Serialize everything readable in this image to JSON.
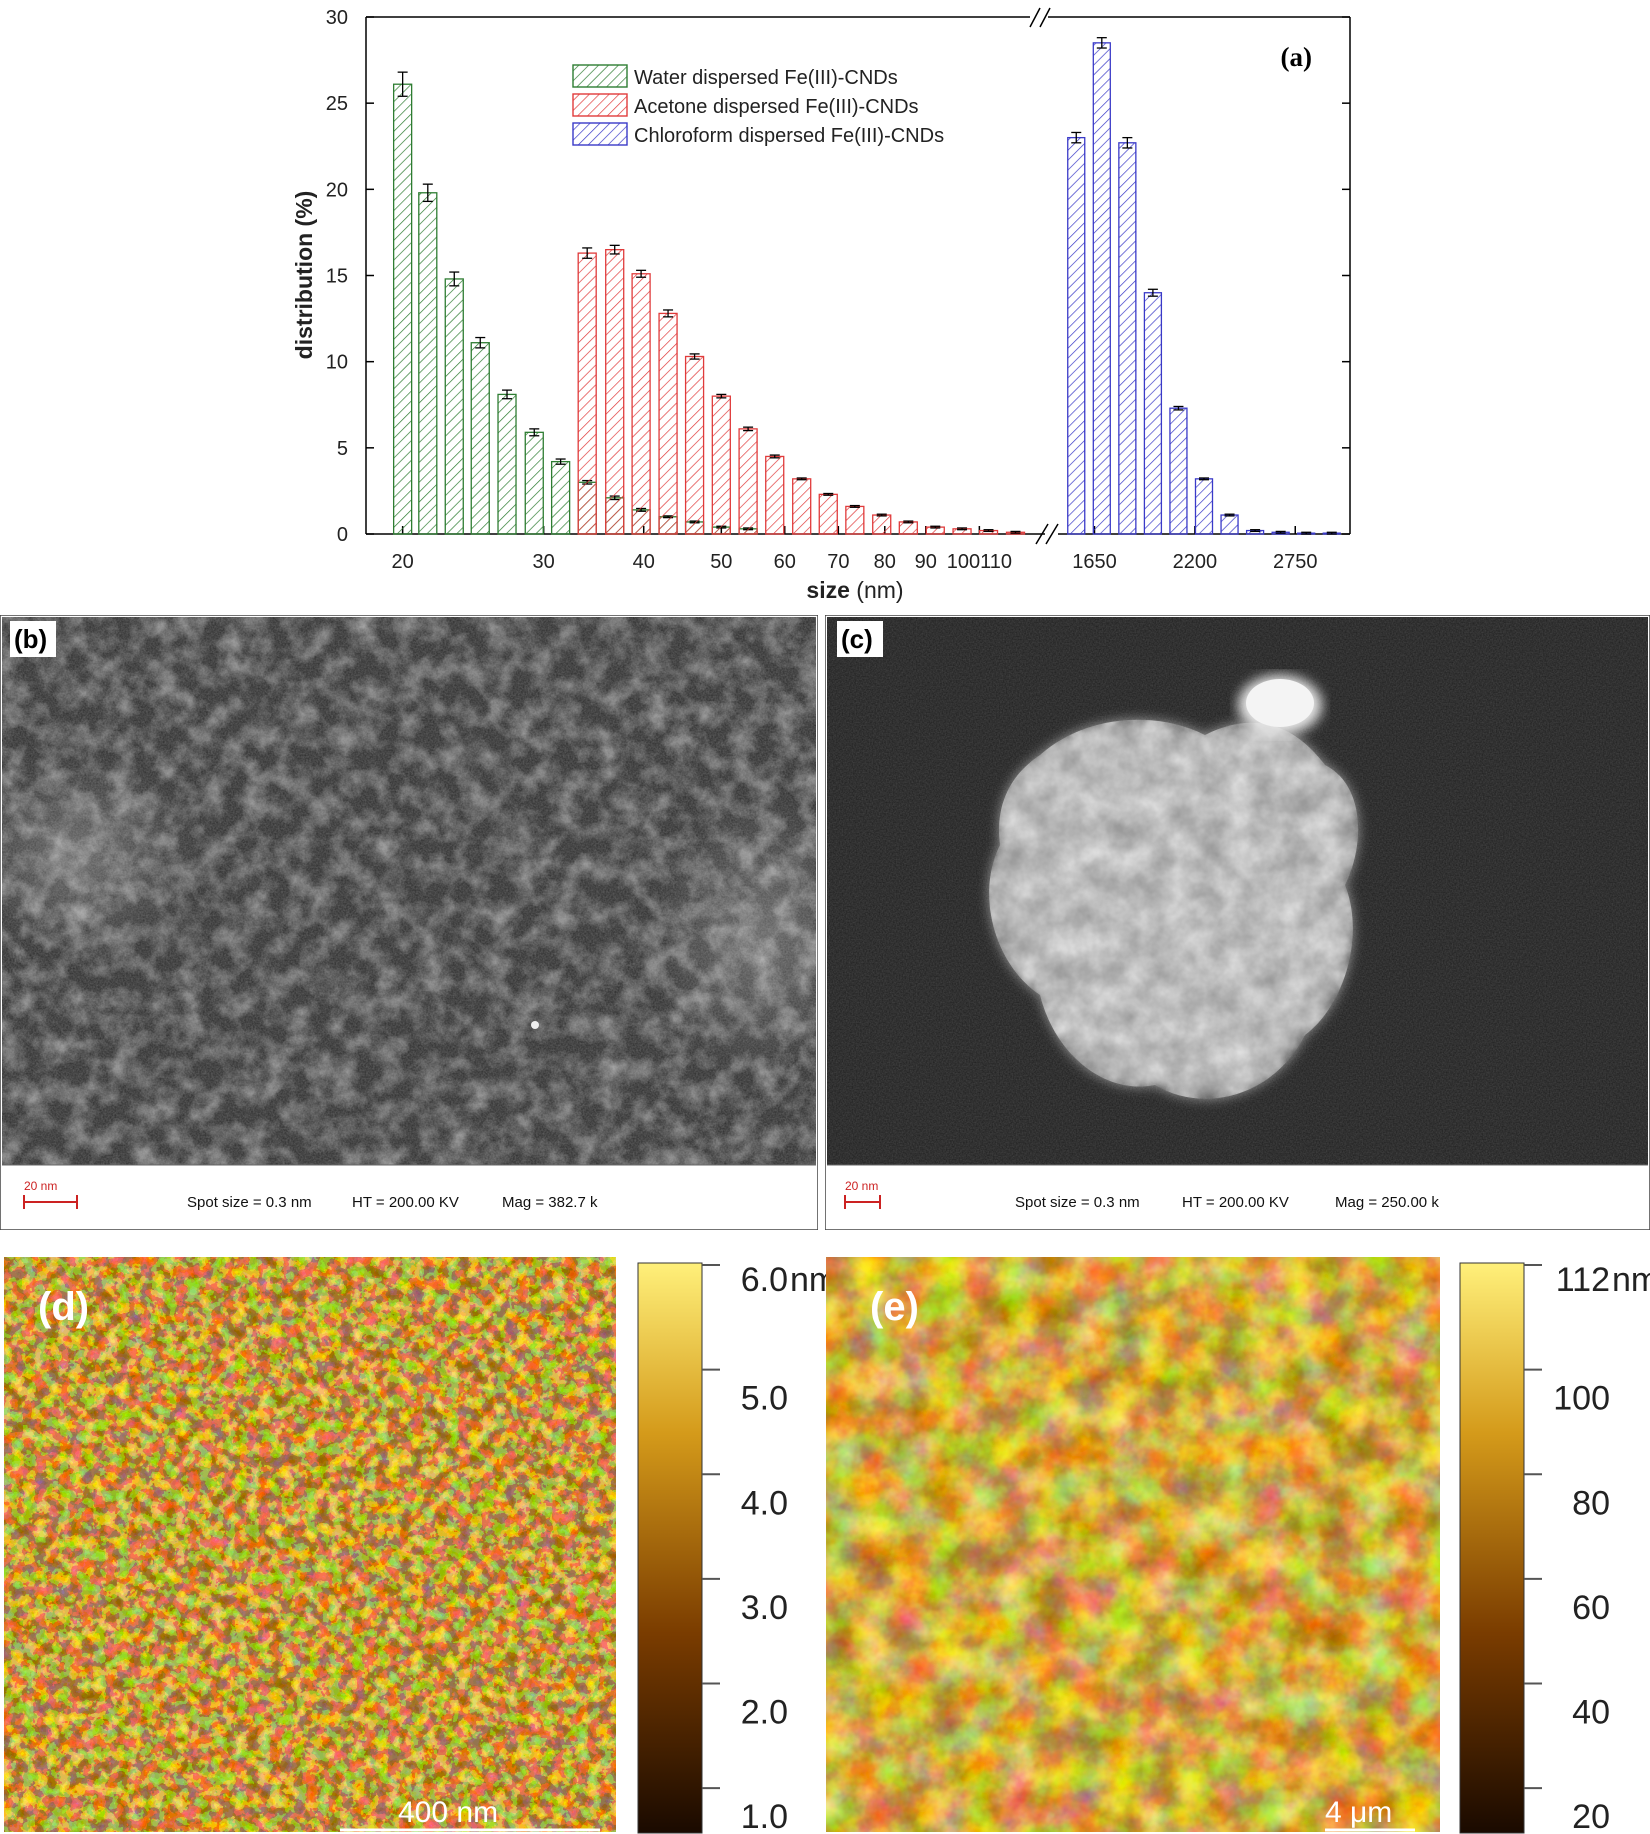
{
  "panel_a": {
    "label": "(a)",
    "ylabel": "distribution (%)",
    "xlabel_bold": "size",
    "xlabel_unit": " (nm)",
    "y_ticks": [
      "0",
      "5",
      "10",
      "15",
      "20",
      "25",
      "30"
    ],
    "x_ticks": [
      "20",
      "30",
      "40",
      "50",
      "60",
      "70",
      "80",
      "90",
      "100110",
      "1650",
      "2200",
      "2750"
    ],
    "legend": [
      {
        "name": "Water dispersed Fe(III)-CNDs",
        "color": "#2e7d32"
      },
      {
        "name": "Acetone dispersed Fe(III)-CNDs",
        "color": "#e03b3b"
      },
      {
        "name": "Chloroform dispersed Fe(III)-CNDs",
        "color": "#3a3ac8"
      }
    ]
  },
  "chart_data": {
    "type": "bar",
    "title": "",
    "xlabel": "size (nm)",
    "ylabel": "distribution (%)",
    "ylim": [
      0,
      30
    ],
    "x_axis": "broken axis: 18-125 nm on a log scale, then break, then 1450-3050 nm linear",
    "legend_placement": "top-center",
    "series": [
      {
        "name": "Water dispersed Fe(III)-CNDs",
        "color": "#2e7d32",
        "x": [
          20,
          21.5,
          23.2,
          25,
          27,
          29.2,
          31.5,
          34,
          36.8,
          39.7,
          42.9,
          46.3,
          50,
          54
        ],
        "values": [
          26.1,
          19.8,
          14.8,
          11.1,
          8.1,
          5.9,
          4.2,
          3.0,
          2.1,
          1.4,
          1.0,
          0.7,
          0.4,
          0.3
        ],
        "errors": [
          0.7,
          0.5,
          0.4,
          0.3,
          0.25,
          0.2,
          0.15,
          0.1,
          0.1,
          0.08,
          0.05,
          0.05,
          0.05,
          0.05
        ]
      },
      {
        "name": "Acetone dispersed Fe(III)-CNDs",
        "color": "#e03b3b",
        "x": [
          34,
          36.8,
          39.7,
          42.9,
          46.3,
          50,
          54,
          58.3,
          63,
          68,
          73.4,
          79.3,
          85.6,
          92.5,
          99.9,
          107.8,
          116.5
        ],
        "values": [
          16.3,
          16.5,
          15.1,
          12.8,
          10.3,
          8.0,
          6.1,
          4.5,
          3.2,
          2.3,
          1.6,
          1.1,
          0.7,
          0.4,
          0.3,
          0.2,
          0.1
        ],
        "errors": [
          0.3,
          0.25,
          0.2,
          0.2,
          0.15,
          0.1,
          0.1,
          0.08,
          0.05,
          0.05,
          0.05,
          0.05,
          0.05,
          0.05,
          0.05,
          0.05,
          0.05
        ]
      },
      {
        "name": "Chloroform dispersed Fe(III)-CNDs",
        "color": "#3a3ac8",
        "x": [
          1550,
          1690,
          1830,
          1970,
          2110,
          2250,
          2390,
          2530,
          2670,
          2810,
          2950
        ],
        "values": [
          23.0,
          28.5,
          22.7,
          14.0,
          7.3,
          3.2,
          1.1,
          0.2,
          0.1,
          0.05,
          0.05
        ],
        "errors": [
          0.3,
          0.3,
          0.3,
          0.2,
          0.1,
          0.05,
          0.05,
          0.05,
          0.05,
          0.05,
          0.05
        ]
      }
    ]
  },
  "panel_b": {
    "label": "(b)",
    "scale_label": "20 nm",
    "info": [
      "Spot size = 0.3 nm",
      "HT = 200.00 KV",
      "Mag = 382.7 k"
    ]
  },
  "panel_c": {
    "label": "(c)",
    "scale_label": "20 nm",
    "info": [
      "Spot size = 0.3 nm",
      "HT = 200.00 KV",
      "Mag = 250.00 k"
    ]
  },
  "panel_d": {
    "label": "(d)",
    "scale_label": "400 nm",
    "colorbar_ticks": [
      "6.0",
      "5.0",
      "4.0",
      "3.0",
      "2.0",
      "1.0"
    ],
    "colorbar_unit": "nm"
  },
  "panel_e": {
    "label": "(e)",
    "scale_label": "4 μm",
    "colorbar_ticks": [
      "112",
      "100",
      "80",
      "60",
      "40",
      "20"
    ],
    "colorbar_unit": "nm"
  }
}
